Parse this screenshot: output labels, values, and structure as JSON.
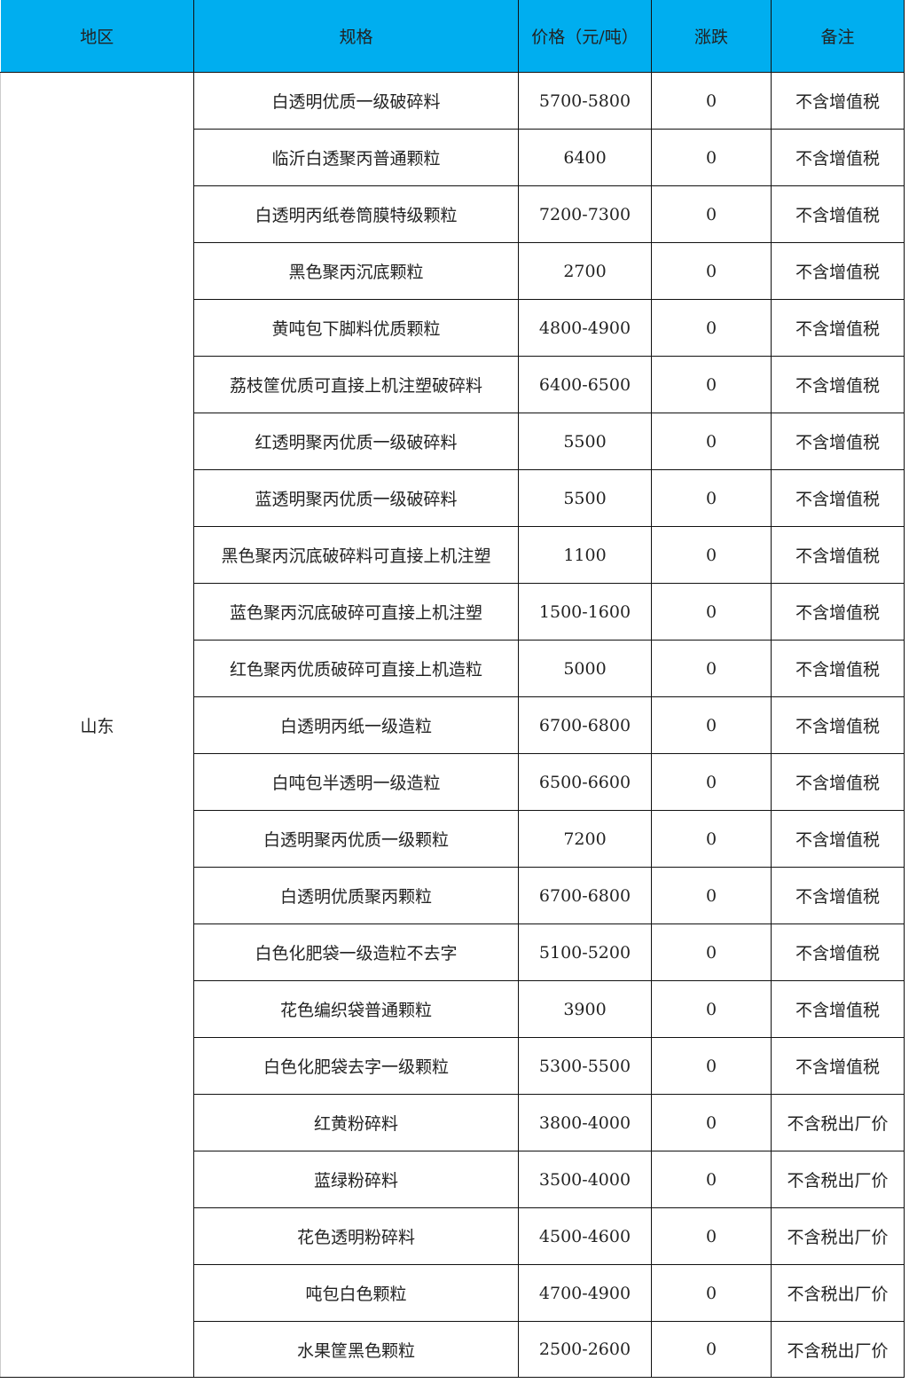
{
  "colors": {
    "header_bg": "#00aeef"
  },
  "headers": [
    "地区",
    "规格",
    "价格（元/吨）",
    "涨跌",
    "备注"
  ],
  "region": "山东",
  "rows": [
    {
      "spec": "白透明优质一级破碎料",
      "price": "5700-5800",
      "change": "0",
      "note": "不含增值税"
    },
    {
      "spec": "临沂白透聚丙普通颗粒",
      "price": "6400",
      "change": "0",
      "note": "不含增值税"
    },
    {
      "spec": "白透明丙纸卷筒膜特级颗粒",
      "price": "7200-7300",
      "change": "0",
      "note": "不含增值税"
    },
    {
      "spec": "黑色聚丙沉底颗粒",
      "price": "2700",
      "change": "0",
      "note": "不含增值税"
    },
    {
      "spec": "黄吨包下脚料优质颗粒",
      "price": "4800-4900",
      "change": "0",
      "note": "不含增值税"
    },
    {
      "spec": "荔枝筐优质可直接上机注塑破碎料",
      "price": "6400-6500",
      "change": "0",
      "note": "不含增值税"
    },
    {
      "spec": "红透明聚丙优质一级破碎料",
      "price": "5500",
      "change": "0",
      "note": "不含增值税"
    },
    {
      "spec": "蓝透明聚丙优质一级破碎料",
      "price": "5500",
      "change": "0",
      "note": "不含增值税"
    },
    {
      "spec": "黑色聚丙沉底破碎料可直接上机注塑",
      "price": "1100",
      "change": "0",
      "note": "不含增值税"
    },
    {
      "spec": "蓝色聚丙沉底破碎可直接上机注塑",
      "price": "1500-1600",
      "change": "0",
      "note": "不含增值税"
    },
    {
      "spec": "红色聚丙优质破碎可直接上机造粒",
      "price": "5000",
      "change": "0",
      "note": "不含增值税"
    },
    {
      "spec": "白透明丙纸一级造粒",
      "price": "6700-6800",
      "change": "0",
      "note": "不含增值税"
    },
    {
      "spec": "白吨包半透明一级造粒",
      "price": "6500-6600",
      "change": "0",
      "note": "不含增值税"
    },
    {
      "spec": "白透明聚丙优质一级颗粒",
      "price": "7200",
      "change": "0",
      "note": "不含增值税"
    },
    {
      "spec": "白透明优质聚丙颗粒",
      "price": "6700-6800",
      "change": "0",
      "note": "不含增值税"
    },
    {
      "spec": "白色化肥袋一级造粒不去字",
      "price": "5100-5200",
      "change": "0",
      "note": "不含增值税"
    },
    {
      "spec": "花色编织袋普通颗粒",
      "price": "3900",
      "change": "0",
      "note": "不含增值税"
    },
    {
      "spec": "白色化肥袋去字一级颗粒",
      "price": "5300-5500",
      "change": "0",
      "note": "不含增值税"
    },
    {
      "spec": "红黄粉碎料",
      "price": "3800-4000",
      "change": "0",
      "note": "不含税出厂价"
    },
    {
      "spec": "蓝绿粉碎料",
      "price": "3500-4000",
      "change": "0",
      "note": "不含税出厂价"
    },
    {
      "spec": "花色透明粉碎料",
      "price": "4500-4600",
      "change": "0",
      "note": "不含税出厂价"
    },
    {
      "spec": "吨包白色颗粒",
      "price": "4700-4900",
      "change": "0",
      "note": "不含税出厂价"
    },
    {
      "spec": "水果筐黑色颗粒",
      "price": "2500-2600",
      "change": "0",
      "note": "不含税出厂价"
    }
  ]
}
